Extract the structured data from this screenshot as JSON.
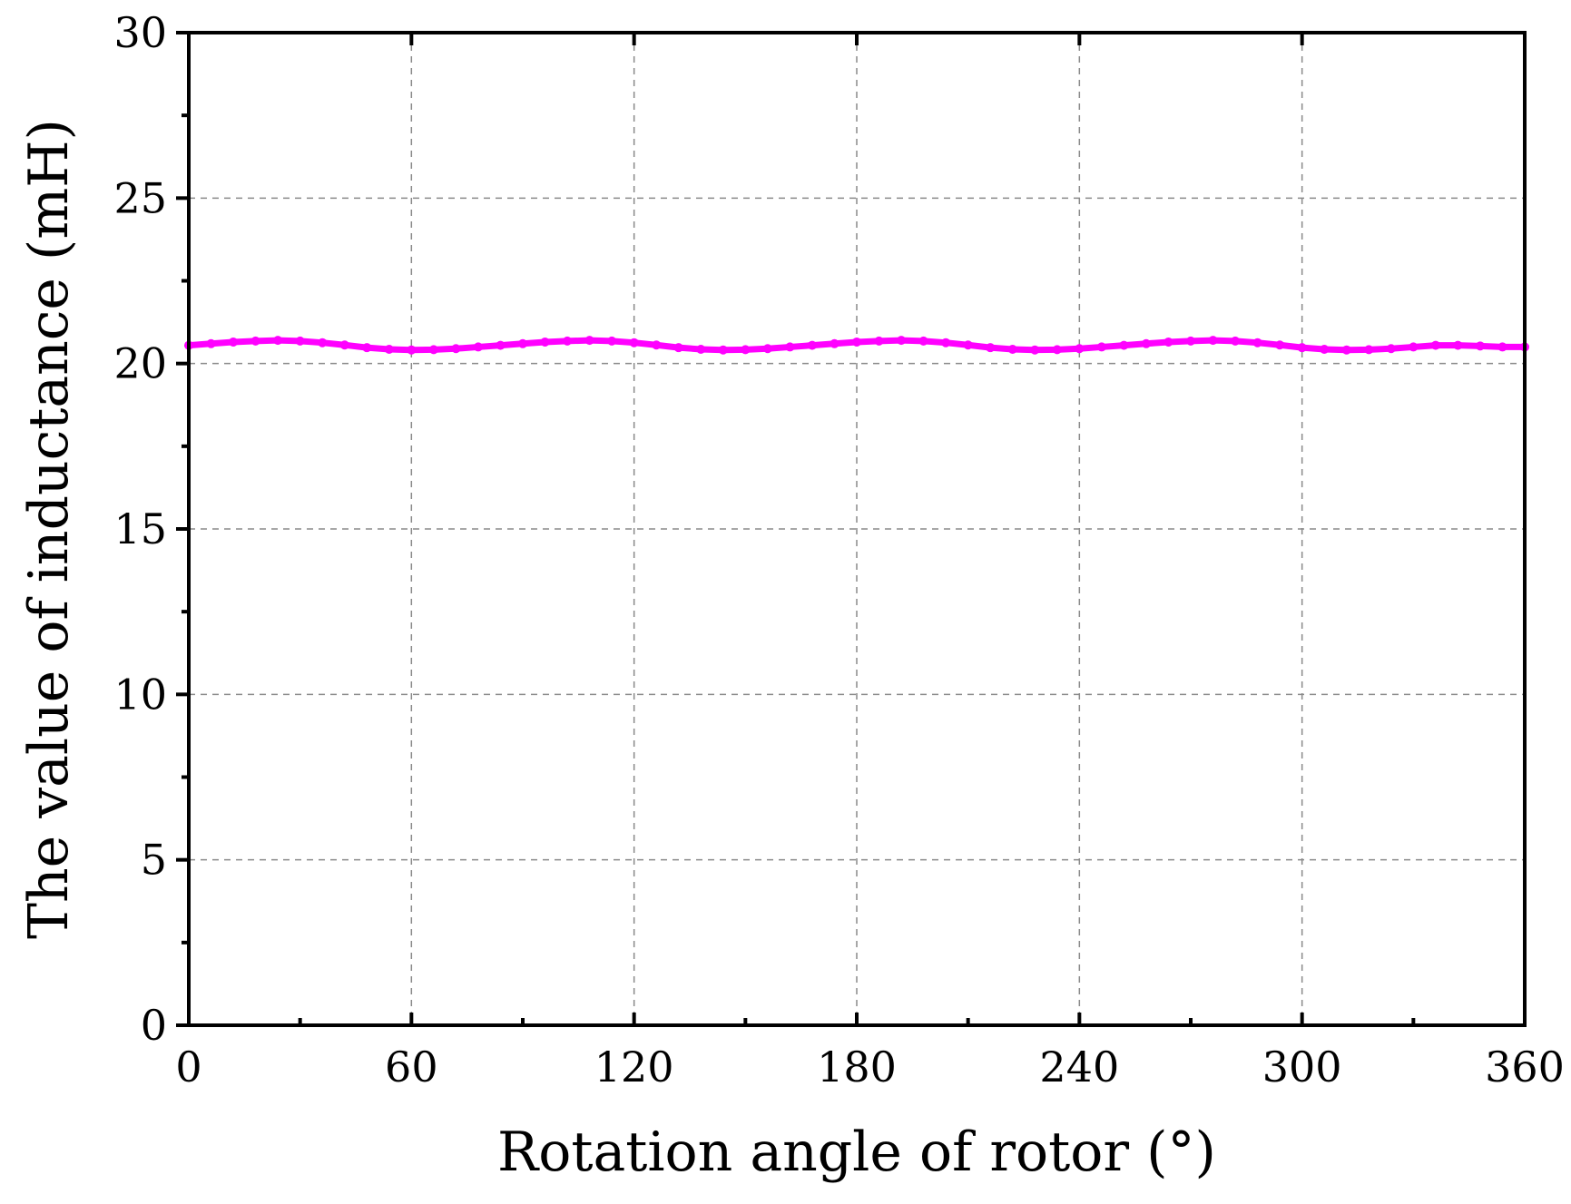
{
  "chart_data": {
    "type": "line",
    "title": "",
    "xlabel": "Rotation angle of rotor (°)",
    "ylabel": "The value of inductance (mH)",
    "xlim": [
      0,
      360
    ],
    "ylim": [
      0,
      30
    ],
    "xticks": [
      "0",
      "60",
      "120",
      "180",
      "240",
      "300",
      "360"
    ],
    "yticks": [
      "0",
      "5",
      "10",
      "15",
      "20",
      "25",
      "30"
    ],
    "grid": true,
    "legend": "none",
    "series": [
      {
        "color": "#ff00ff",
        "marker": "circle",
        "x": [
          0,
          6,
          12,
          18,
          24,
          30,
          36,
          42,
          48,
          54,
          60,
          66,
          72,
          78,
          84,
          90,
          96,
          102,
          108,
          114,
          120,
          126,
          132,
          138,
          144,
          150,
          156,
          162,
          168,
          174,
          180,
          186,
          192,
          198,
          204,
          210,
          216,
          222,
          228,
          234,
          240,
          246,
          252,
          258,
          264,
          270,
          276,
          282,
          288,
          294,
          300,
          306,
          312,
          318,
          324,
          330,
          336,
          342,
          348,
          354,
          360
        ],
        "y": [
          20.55,
          20.6,
          20.65,
          20.68,
          20.7,
          20.68,
          20.63,
          20.56,
          20.48,
          20.43,
          20.41,
          20.42,
          20.45,
          20.5,
          20.55,
          20.6,
          20.65,
          20.68,
          20.7,
          20.68,
          20.63,
          20.56,
          20.48,
          20.43,
          20.41,
          20.42,
          20.45,
          20.5,
          20.55,
          20.6,
          20.65,
          20.68,
          20.7,
          20.68,
          20.63,
          20.56,
          20.48,
          20.43,
          20.41,
          20.42,
          20.45,
          20.5,
          20.55,
          20.6,
          20.65,
          20.68,
          20.7,
          20.68,
          20.63,
          20.56,
          20.48,
          20.43,
          20.41,
          20.42,
          20.45,
          20.5,
          20.55,
          20.55,
          20.53,
          20.5,
          20.5
        ]
      }
    ]
  }
}
